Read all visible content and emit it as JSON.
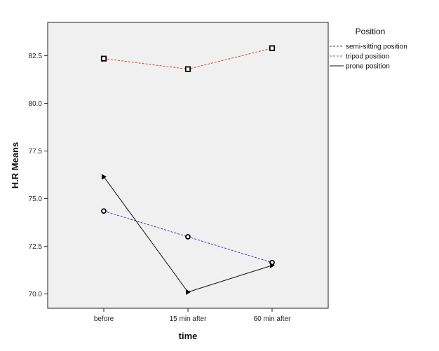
{
  "chart_data": {
    "type": "line",
    "xlabel": "time",
    "ylabel": "H.R Means",
    "categories": [
      "before",
      "15 min after",
      "60 min after"
    ],
    "ylim": [
      69.25,
      84.25
    ],
    "yticks": [
      "70.0",
      "72.5",
      "75.0",
      "77.5",
      "80.0",
      "82.5"
    ],
    "ytick_values": [
      70.0,
      72.5,
      75.0,
      77.5,
      80.0,
      82.5
    ],
    "grid": false,
    "legend": {
      "title": "Position",
      "placement": "right"
    },
    "series": [
      {
        "name": "semi-sitting position",
        "values": [
          74.35,
          73.0,
          71.65
        ],
        "color": "#3b3b9b",
        "dash": "dashed",
        "marker": "circle"
      },
      {
        "name": "tripod position",
        "values": [
          82.35,
          81.8,
          82.9
        ],
        "color": "#e04040",
        "dash": "dashed",
        "marker": "square"
      },
      {
        "name": "prone position",
        "values": [
          76.15,
          70.1,
          71.5
        ],
        "color": "#111111",
        "dash": "solid",
        "marker": "triangle"
      }
    ]
  }
}
